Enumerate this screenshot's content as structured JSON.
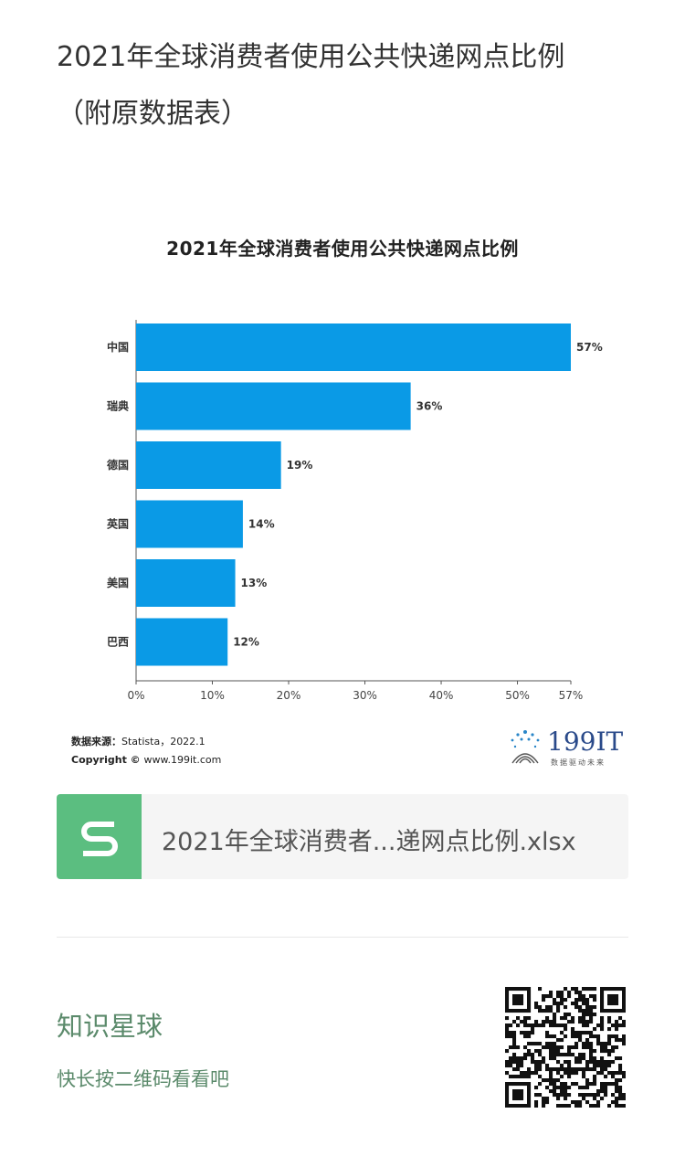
{
  "article": {
    "title_line1": "2021年全球消费者使用公共快递网点比例",
    "title_line2": "（附原数据表）"
  },
  "chart_data": {
    "type": "bar",
    "orientation": "horizontal",
    "title": "2021年全球消费者使用公共快递网点比例",
    "categories": [
      "中国",
      "瑞典",
      "德国",
      "英国",
      "美国",
      "巴西"
    ],
    "values": [
      57,
      36,
      19,
      14,
      13,
      12
    ],
    "value_labels": [
      "57%",
      "36%",
      "19%",
      "14%",
      "13%",
      "12%"
    ],
    "xlim": [
      0,
      57
    ],
    "xticks": [
      0,
      10,
      20,
      30,
      40,
      50,
      57
    ],
    "xtick_labels": [
      "0%",
      "10%",
      "20%",
      "30%",
      "40%",
      "50%",
      "57%"
    ],
    "bar_color": "#0a9ae6",
    "grid": false
  },
  "source": {
    "label": "数据来源：",
    "text": "Statista，2022.1",
    "copyright_label": "Copyright © ",
    "copyright_text": "www.199it.com"
  },
  "logo": {
    "text": "199IT",
    "subtext": "数据驱动未来"
  },
  "attachment": {
    "file_name": "2021年全球消费者...递网点比例.xlsx",
    "icon": "spreadsheet-icon",
    "icon_color": "#5bbe80"
  },
  "promo": {
    "title": "知识星球",
    "subtitle": "快长按二维码看看吧",
    "color": "#5b8a6b"
  }
}
